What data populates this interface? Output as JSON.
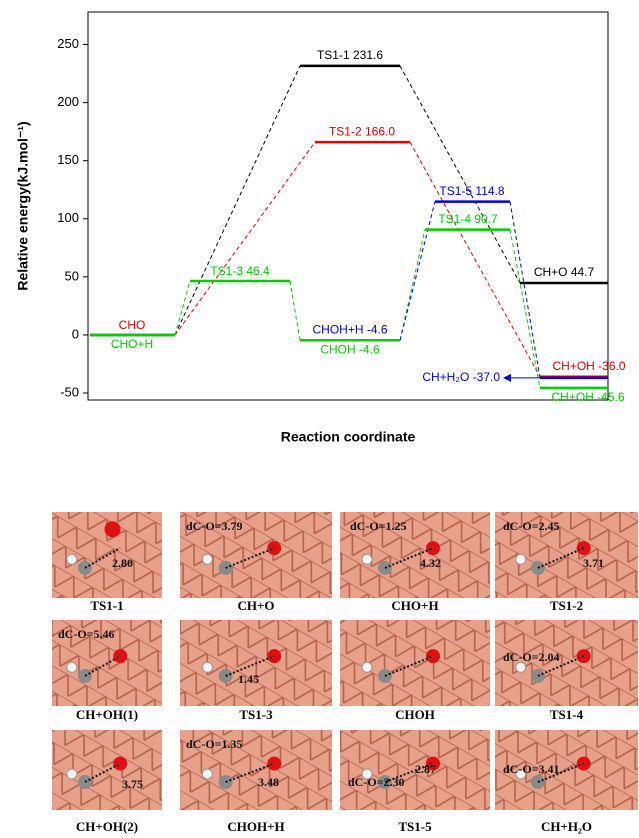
{
  "chart_data": {
    "type": "energy-levels",
    "xlabel": "Reaction coordinate",
    "ylabel": "Relative energy(kJ.mol⁻¹)",
    "ylim": [
      -56,
      278
    ],
    "yticks": [
      -50,
      0,
      50,
      100,
      150,
      200,
      250
    ],
    "levels": [
      {
        "label": "CHO",
        "value": 0,
        "color": "#e00000",
        "line_color": "#000000"
      },
      {
        "label": "CHO+H",
        "value": 0,
        "color": "#00cc00"
      },
      {
        "label": "TS1-3 46.4",
        "value": 46.4,
        "color": "#00cc00"
      },
      {
        "label": "TS1-1 231.6",
        "value": 231.6,
        "color": "#000000"
      },
      {
        "label": "TS1-2 166.0",
        "value": 166.0,
        "color": "#e00000"
      },
      {
        "label": "CHOH+H -4.6",
        "value": -4.6,
        "color": "#0000dd"
      },
      {
        "label": "CHOH -4.6",
        "value": -4.6,
        "color": "#00cc00"
      },
      {
        "label": "TS1-5 114.8",
        "value": 114.8,
        "color": "#0000dd"
      },
      {
        "label": "TS1-4 90.7",
        "value": 90.7,
        "color": "#00cc00"
      },
      {
        "label": "CH+O 44.7",
        "value": 44.7,
        "color": "#000000"
      },
      {
        "label": "CH+OH -36.0",
        "value": -36.0,
        "color": "#e00000"
      },
      {
        "label": "CH+H₂O -37.0",
        "value": -37.0,
        "color": "#0000dd"
      },
      {
        "label": "CH+OH -45.6",
        "value": -45.6,
        "color": "#00cc00"
      }
    ]
  },
  "panels": [
    {
      "caption": "TS1-1",
      "labels": [
        "2.80"
      ]
    },
    {
      "caption": "CH+O",
      "labels": [
        "dC-O=3.79"
      ]
    },
    {
      "caption": "CHO+H",
      "labels": [
        "dC-O=1.25",
        "4.32"
      ]
    },
    {
      "caption": "TS1-2",
      "labels": [
        "dC-O=2.45",
        "3.71"
      ]
    },
    {
      "caption": "CH+OH(1)",
      "labels": [
        "dC-O=5.46"
      ]
    },
    {
      "caption": "TS1-3",
      "labels": [
        "1.45"
      ]
    },
    {
      "caption": "CHOH",
      "labels": []
    },
    {
      "caption": "TS1-4",
      "labels": [
        "dC-O=2.04"
      ]
    },
    {
      "caption": "CH+OH(2)",
      "labels": [
        "3.75"
      ]
    },
    {
      "caption": "CHOH+H",
      "labels": [
        "dC-O=1.35",
        "3.48"
      ]
    },
    {
      "caption": "TS1-5",
      "labels": [
        "2.87",
        "dC-O=2.30"
      ]
    },
    {
      "caption": "CH+H₂O",
      "labels": [
        "dC-O=3.41"
      ]
    }
  ]
}
